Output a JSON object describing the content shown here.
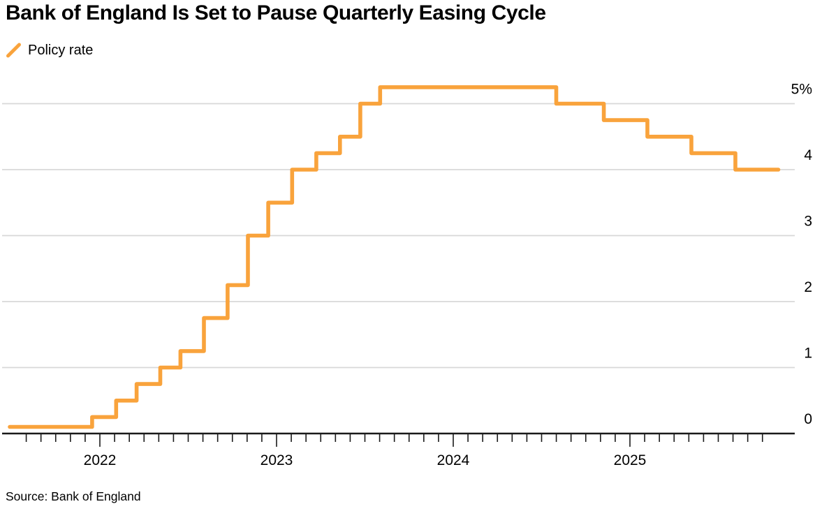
{
  "header": {
    "title": "Bank of England Is Set to Pause Quarterly Easing Cycle"
  },
  "legend": {
    "label": "Policy rate"
  },
  "source": "Source: Bank of England",
  "colors": {
    "line": "#F9A33C",
    "grid": "#D8D8D8",
    "axis": "#1a1a1a",
    "text": "#000000"
  },
  "chart_data": {
    "type": "line",
    "subtype": "step-after",
    "title": "Bank of England Is Set to Pause Quarterly Easing Cycle",
    "xlabel": "",
    "ylabel": "",
    "units": "%",
    "grid": "horizontal",
    "legend_position": "top-left",
    "xlim": [
      2021.45,
      2025.93
    ],
    "ylim": [
      0,
      5.45
    ],
    "x_major_ticks": [
      {
        "t": 2022,
        "label": "2022"
      },
      {
        "t": 2023,
        "label": "2023"
      },
      {
        "t": 2024,
        "label": "2024"
      },
      {
        "t": 2025,
        "label": "2025"
      }
    ],
    "x_minor_tick_interval_months": 1,
    "x_minor_tick_range": [
      2021.55,
      2025.76
    ],
    "y_ticks": [
      {
        "v": 0,
        "label": "0"
      },
      {
        "v": 1,
        "label": "1"
      },
      {
        "v": 2,
        "label": "2"
      },
      {
        "v": 3,
        "label": "3"
      },
      {
        "v": 4,
        "label": "4"
      },
      {
        "v": 5,
        "label": "5%"
      }
    ],
    "series": [
      {
        "name": "Policy rate",
        "color": "#F9A33C",
        "points_format": "[decimal_year_of_change, rate_percent_after_change]",
        "points": [
          [
            2021.49,
            0.1
          ],
          [
            2021.956,
            0.25
          ],
          [
            2022.092,
            0.5
          ],
          [
            2022.208,
            0.75
          ],
          [
            2022.342,
            1.0
          ],
          [
            2022.456,
            1.25
          ],
          [
            2022.589,
            1.75
          ],
          [
            2022.723,
            2.25
          ],
          [
            2022.838,
            3.0
          ],
          [
            2022.953,
            3.5
          ],
          [
            2023.088,
            4.0
          ],
          [
            2023.225,
            4.25
          ],
          [
            2023.359,
            4.5
          ],
          [
            2023.474,
            5.0
          ],
          [
            2023.586,
            5.25
          ],
          [
            2024.583,
            5.0
          ],
          [
            2024.852,
            4.75
          ],
          [
            2025.099,
            4.5
          ],
          [
            2025.348,
            4.25
          ],
          [
            2025.597,
            4.0
          ],
          [
            2025.84,
            4.0
          ]
        ]
      }
    ]
  }
}
